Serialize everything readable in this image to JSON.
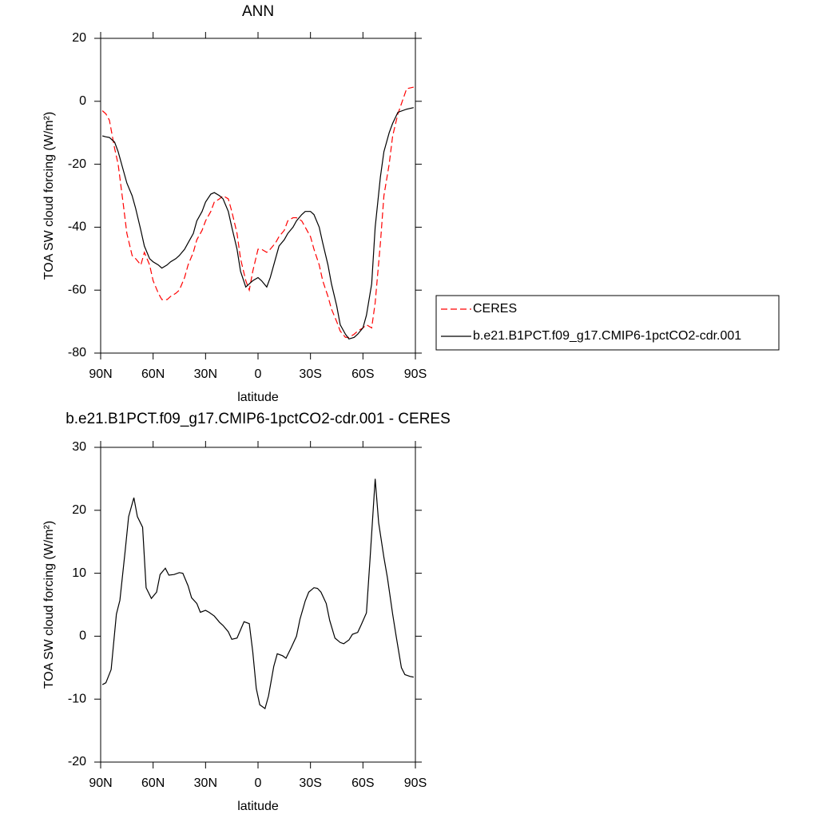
{
  "chart_data": [
    {
      "type": "line",
      "title": "ANN",
      "xlabel": "latitude",
      "ylabel": "TOA SW cloud forcing (W/m²)",
      "xlim": [
        90,
        -90
      ],
      "xticks": [
        {
          "value": 90,
          "label": "90N"
        },
        {
          "value": 60,
          "label": "60N"
        },
        {
          "value": 30,
          "label": "30N"
        },
        0,
        {
          "value": -30,
          "label": "30S"
        },
        {
          "value": -60,
          "label": "60S"
        },
        {
          "value": -90,
          "label": "90S"
        }
      ],
      "ylim": [
        -80,
        20
      ],
      "yticks": [
        20,
        0,
        -20,
        -40,
        -60,
        -80
      ],
      "legend": "right",
      "x": [
        89,
        87,
        85,
        82,
        80,
        77,
        75,
        72,
        70,
        67,
        65,
        62,
        60,
        57,
        55,
        52,
        50,
        47,
        45,
        42,
        40,
        37,
        35,
        32,
        30,
        27,
        25,
        22,
        20,
        17,
        15,
        12,
        10,
        7,
        5,
        3,
        0,
        -2,
        -5,
        -7,
        -10,
        -12,
        -15,
        -17,
        -20,
        -22,
        -25,
        -27,
        -30,
        -32,
        -35,
        -37,
        -40,
        -42,
        -45,
        -47,
        -50,
        -52,
        -55,
        -57,
        -60,
        -62,
        -65,
        -67,
        -70,
        -72,
        -75,
        -77,
        -80,
        -85,
        -89
      ],
      "series": [
        {
          "name": "CERES",
          "color": "#ff0000",
          "dash": true,
          "values": [
            -3,
            -4,
            -6,
            -15,
            -20,
            -33,
            -42,
            -49,
            -50,
            -52,
            -48,
            -52,
            -57,
            -61,
            -63,
            -63,
            -62,
            -61,
            -60,
            -56,
            -52,
            -48,
            -44,
            -41,
            -38,
            -35,
            -32,
            -31,
            -30,
            -31,
            -35,
            -42,
            -50,
            -57,
            -60,
            -54,
            -47,
            -47,
            -48,
            -47,
            -45,
            -43,
            -41,
            -38,
            -37,
            -37,
            -38,
            -40,
            -43,
            -47,
            -52,
            -57,
            -62,
            -66,
            -70,
            -73,
            -75,
            -75,
            -74,
            -73,
            -72,
            -71,
            -72,
            -64,
            -45,
            -30,
            -20,
            -11,
            -4,
            4,
            4.5
          ]
        },
        {
          "name": "b.e21.B1PCT.f09_g17.CMIP6-1pctCO2-cdr.001",
          "color": "#000000",
          "dash": false,
          "values": [
            -11,
            -11.3,
            -11.5,
            -13,
            -16,
            -22,
            -26,
            -30,
            -34,
            -41,
            -46,
            -50,
            -51,
            -52,
            -53,
            -52,
            -51,
            -50,
            -49,
            -47,
            -45,
            -42,
            -38,
            -35,
            -32,
            -29.5,
            -29,
            -30,
            -31,
            -35,
            -40,
            -47,
            -54,
            -59,
            -58,
            -57,
            -56,
            -57,
            -59,
            -56,
            -50,
            -46,
            -44,
            -42,
            -40,
            -38,
            -36,
            -35,
            -35,
            -36,
            -40,
            -45,
            -52,
            -58,
            -65,
            -71,
            -74,
            -75.5,
            -75,
            -74,
            -72,
            -68,
            -58,
            -40,
            -24,
            -16,
            -10,
            -7,
            -3.5,
            -2.5,
            -2
          ]
        }
      ]
    },
    {
      "type": "line",
      "title": "b.e21.B1PCT.f09_g17.CMIP6-1pctCO2-cdr.001 - CERES",
      "xlabel": "latitude",
      "ylabel": "TOA SW cloud forcing (W/m²)",
      "xlim": [
        90,
        -90
      ],
      "xticks": [
        {
          "value": 90,
          "label": "90N"
        },
        {
          "value": 60,
          "label": "60N"
        },
        {
          "value": 30,
          "label": "30N"
        },
        0,
        {
          "value": -30,
          "label": "30S"
        },
        {
          "value": -60,
          "label": "60S"
        },
        {
          "value": -90,
          "label": "90S"
        }
      ],
      "ylim": [
        -20,
        30
      ],
      "yticks": [
        30,
        20,
        10,
        0,
        -10,
        -20
      ],
      "x": [
        89,
        87,
        84,
        81,
        79,
        76,
        74,
        71,
        69,
        66,
        64,
        61,
        58,
        56,
        53,
        51,
        48,
        45,
        43,
        40,
        38,
        35,
        33,
        30,
        28,
        25,
        22,
        20,
        17,
        15,
        12,
        10,
        8,
        5,
        3,
        1,
        -1,
        -4,
        -6,
        -9,
        -11,
        -14,
        -16,
        -19,
        -22,
        -24,
        -27,
        -29,
        -32,
        -34,
        -36,
        -39,
        -41,
        -44,
        -47,
        -49,
        -52,
        -54,
        -57,
        -59,
        -62,
        -64,
        -67,
        -69,
        -72,
        -74,
        -77,
        -79,
        -82,
        -84,
        -87,
        -89
      ],
      "series": [
        {
          "color": "#000000",
          "dash": false,
          "values": [
            -7.7,
            -7.4,
            -5.3,
            3.5,
            5.7,
            13.5,
            19,
            22,
            19,
            17.3,
            7.7,
            6,
            7,
            9.8,
            10.8,
            9.7,
            9.8,
            10.1,
            10,
            8,
            6.1,
            5.2,
            3.8,
            4.1,
            3.8,
            3.2,
            2.2,
            1.7,
            0.7,
            -0.5,
            -0.3,
            1.0,
            2.3,
            2.0,
            -2.5,
            -8.3,
            -10.9,
            -11.5,
            -9.5,
            -4.8,
            -2.8,
            -3.1,
            -3.5,
            -1.8,
            0.0,
            2.7,
            5.6,
            7.0,
            7.7,
            7.6,
            7.0,
            5.2,
            2.5,
            -0.3,
            -1.0,
            -1.2,
            -0.6,
            0.3,
            0.6,
            1.8,
            3.7,
            12,
            25,
            18,
            12.5,
            9.3,
            3.5,
            0.0,
            -5.0,
            -6.1,
            -6.4,
            -6.5
          ]
        }
      ]
    }
  ]
}
